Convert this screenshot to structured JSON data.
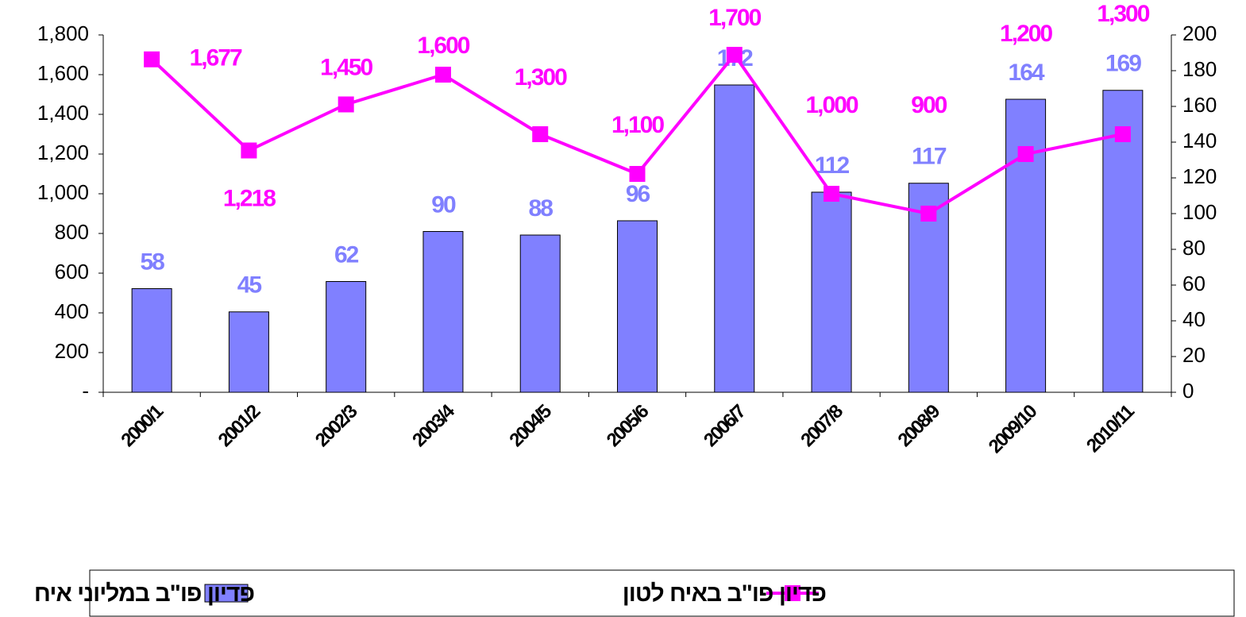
{
  "chart_data": {
    "type": "bar-line",
    "categories": [
      "2000/1",
      "2001/2",
      "2002/3",
      "2003/4",
      "2004/5",
      "2005/6",
      "2006/7",
      "2007/8",
      "2008/9",
      "2009/10",
      "2010/11"
    ],
    "series": [
      {
        "name": "פדיון פו\"ב במליוני איח",
        "type": "bar",
        "color": "#8080ff",
        "axis": "y2",
        "values": [
          58,
          45,
          62,
          90,
          88,
          96,
          172,
          112,
          117,
          164,
          169
        ]
      },
      {
        "name": "פדיון פו\"ב באיח לטון",
        "type": "line",
        "color": "#ff00ff",
        "values": [
          1677,
          1218,
          1450,
          1600,
          1300,
          1100,
          1700,
          1000,
          900,
          1200,
          1300
        ],
        "value_labels": [
          "1,677",
          "1,218",
          "1,450",
          "1,600",
          "1,300",
          "1,100",
          "1,700",
          "1,000",
          "900",
          "1,200",
          "1,300"
        ]
      }
    ],
    "ylim": [
      0,
      1800
    ],
    "yticks": [
      {
        "value": 0,
        "label": "-"
      },
      200,
      400,
      600,
      800,
      {
        "value": 1000,
        "label": "1,000"
      },
      {
        "value": 1200,
        "label": "1,200"
      },
      {
        "value": 1400,
        "label": "1,400"
      },
      {
        "value": 1600,
        "label": "1,600"
      },
      {
        "value": 1800,
        "label": "1,800"
      }
    ],
    "y2lim": [
      0,
      200
    ],
    "y2ticks": [
      0,
      20,
      40,
      60,
      80,
      100,
      120,
      140,
      160,
      180,
      200
    ],
    "grid": false,
    "legend": "bottom"
  }
}
